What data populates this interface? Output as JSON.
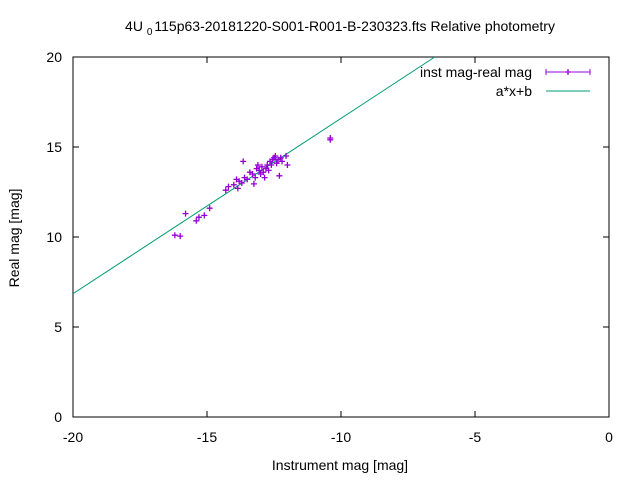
{
  "chart_data": {
    "type": "scatter",
    "title": {
      "prefix": "4U ",
      "subscript": "0",
      "suffix": "115p63-20181220-S001-R001-B-230323.fts Relative photometry"
    },
    "xlabel": "Instrument mag [mag]",
    "ylabel": "Real mag [mag]",
    "xlim": [
      -20,
      0
    ],
    "ylim": [
      0,
      20
    ],
    "xticks": [
      -20,
      -15,
      -10,
      -5,
      0
    ],
    "yticks": [
      0,
      5,
      10,
      15,
      20
    ],
    "xtick_labels": [
      "-20",
      "-15",
      "-10",
      "-5",
      "0"
    ],
    "ytick_labels": [
      "0",
      "5",
      "10",
      "15",
      "20"
    ],
    "legend_position": "top-right",
    "series": [
      {
        "name": "inst mag-real mag",
        "type": "scatter",
        "color": "#9400d3",
        "points": [
          [
            -16.2,
            10.1
          ],
          [
            -16.0,
            10.05
          ],
          [
            -15.8,
            11.3
          ],
          [
            -15.4,
            10.9
          ],
          [
            -15.3,
            11.1
          ],
          [
            -15.1,
            11.2
          ],
          [
            -14.9,
            11.6
          ],
          [
            -14.3,
            12.6
          ],
          [
            -14.2,
            12.8
          ],
          [
            -14.0,
            12.9
          ],
          [
            -13.9,
            13.2
          ],
          [
            -13.85,
            12.7
          ],
          [
            -13.8,
            13.1
          ],
          [
            -13.7,
            13.0
          ],
          [
            -13.65,
            14.2
          ],
          [
            -13.6,
            13.3
          ],
          [
            -13.5,
            13.2
          ],
          [
            -13.4,
            13.6
          ],
          [
            -13.3,
            13.5
          ],
          [
            -13.25,
            12.95
          ],
          [
            -13.2,
            13.3
          ],
          [
            -13.15,
            13.8
          ],
          [
            -13.1,
            14.0
          ],
          [
            -13.05,
            13.7
          ],
          [
            -13.0,
            13.5
          ],
          [
            -12.95,
            13.9
          ],
          [
            -12.9,
            13.6
          ],
          [
            -12.85,
            13.3
          ],
          [
            -12.8,
            13.8
          ],
          [
            -12.75,
            14.0
          ],
          [
            -12.7,
            13.7
          ],
          [
            -12.65,
            14.2
          ],
          [
            -12.6,
            14.0
          ],
          [
            -12.55,
            14.3
          ],
          [
            -12.5,
            14.4
          ],
          [
            -12.45,
            14.5
          ],
          [
            -12.4,
            14.1
          ],
          [
            -12.35,
            14.3
          ],
          [
            -12.3,
            13.4
          ],
          [
            -12.25,
            14.4
          ],
          [
            -12.2,
            14.2
          ],
          [
            -12.05,
            14.5
          ],
          [
            -12.0,
            14.0
          ],
          [
            -10.4,
            15.5
          ],
          [
            -10.4,
            15.4
          ]
        ]
      },
      {
        "name": "a*x+b",
        "type": "line",
        "color": "#009e73",
        "x": [
          -20,
          -6.5
        ],
        "y": [
          6.85,
          20
        ]
      }
    ]
  }
}
